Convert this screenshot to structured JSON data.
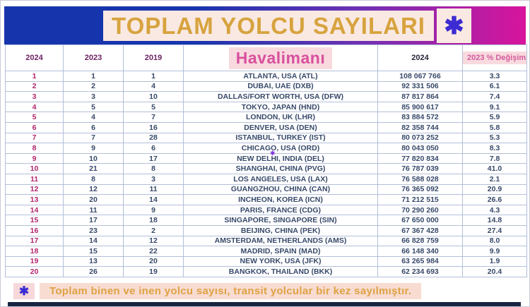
{
  "title": {
    "text": "TOPLAM YOLCU SAYILARI",
    "asterisk_icon": "✱"
  },
  "columns": {
    "rank_2024": "2024",
    "rank_2023": "2023",
    "rank_2019": "2019",
    "airport": "Havalimanı",
    "passengers_2024": "2024",
    "change_2023": "2023 % Değişim"
  },
  "rows": [
    {
      "r2024": "1",
      "r2023": "1",
      "r2019": "1",
      "airport": "ATLANTA, USA (ATL)",
      "pax": "108 067 766",
      "chg": "3.3"
    },
    {
      "r2024": "2",
      "r2023": "2",
      "r2019": "4",
      "airport": "DUBAI, UAE (DXB)",
      "pax": "92 331 506",
      "chg": "6.1"
    },
    {
      "r2024": "3",
      "r2023": "3",
      "r2019": "10",
      "airport": "DALLAS/FORT WORTH, USA (DFW)",
      "pax": "87 817 864",
      "chg": "7.4"
    },
    {
      "r2024": "4",
      "r2023": "5",
      "r2019": "5",
      "airport": "TOKYO, JAPAN (HND)",
      "pax": "85 900 617",
      "chg": "9.1"
    },
    {
      "r2024": "5",
      "r2023": "4",
      "r2019": "7",
      "airport": "LONDON, UK (LHR)",
      "pax": "83 884 572",
      "chg": "5.9"
    },
    {
      "r2024": "6",
      "r2023": "6",
      "r2019": "16",
      "airport": "DENVER, USA (DEN)",
      "pax": "82 358 744",
      "chg": "5.8"
    },
    {
      "r2024": "7",
      "r2023": "7",
      "r2019": "28",
      "airport": "ISTANBUL, TURKEY (IST)",
      "pax": "80 073 252",
      "chg": "5.3"
    },
    {
      "r2024": "8",
      "r2023": "9",
      "r2019": "6",
      "airport": "CHICAGO, USA (ORD)",
      "pax": "80 043 050",
      "chg": "8.3"
    },
    {
      "r2024": "9",
      "r2023": "10",
      "r2019": "17",
      "airport": "NEW DELHI, INDIA (DEL)",
      "pax": "77 820 834",
      "chg": "7.8"
    },
    {
      "r2024": "10",
      "r2023": "21",
      "r2019": "8",
      "airport": "SHANGHAI, CHINA (PVG)",
      "pax": "76 787 039",
      "chg": "41.0"
    },
    {
      "r2024": "11",
      "r2023": "8",
      "r2019": "3",
      "airport": "LOS ANGELES, USA (LAX)",
      "pax": "76 588 028",
      "chg": "2.1"
    },
    {
      "r2024": "12",
      "r2023": "12",
      "r2019": "11",
      "airport": "GUANGZHOU, CHINA (CAN)",
      "pax": "76 365 092",
      "chg": "20.9"
    },
    {
      "r2024": "13",
      "r2023": "20",
      "r2019": "14",
      "airport": "INCHEON, KOREA (ICN)",
      "pax": "71 212 515",
      "chg": "26.6"
    },
    {
      "r2024": "14",
      "r2023": "11",
      "r2019": "9",
      "airport": "PARIS, FRANCE (CDG)",
      "pax": "70 290 260",
      "chg": "4.3"
    },
    {
      "r2024": "15",
      "r2023": "17",
      "r2019": "18",
      "airport": "SINGAPORE, SINGAPORE (SIN)",
      "pax": "67 650 000",
      "chg": "14.8"
    },
    {
      "r2024": "16",
      "r2023": "23",
      "r2019": "2",
      "airport": "BEIJING, CHINA (PEK)",
      "pax": "67 367 428",
      "chg": "27.4"
    },
    {
      "r2024": "17",
      "r2023": "14",
      "r2019": "12",
      "airport": "AMSTERDAM, NETHERLANDS (AMS)",
      "pax": "66 828 759",
      "chg": "8.0"
    },
    {
      "r2024": "18",
      "r2023": "15",
      "r2019": "22",
      "airport": "MADRID, SPAIN (MAD)",
      "pax": "66 148 340",
      "chg": "9.9"
    },
    {
      "r2024": "19",
      "r2023": "13",
      "r2019": "20",
      "airport": "NEW YORK, USA (JFK)",
      "pax": "63 265 984",
      "chg": "1.9"
    },
    {
      "r2024": "20",
      "r2023": "26",
      "r2019": "19",
      "airport": "BANGKOK, THAILAND (BKK)",
      "pax": "62 234 693",
      "chg": "20.4"
    }
  ],
  "annotation_mark": "✱",
  "footnote": {
    "asterisk_icon": "✱",
    "text": "Toplam binen ve inen yolcu sayısı, transit yolcular bir kez sayılmıştır."
  },
  "colors": {
    "banner_blue": "#1635ad",
    "banner_purple": "#6e31b4",
    "banner_magenta": "#d8149c",
    "title_text": "#d7a33e",
    "title_bg": "#f9e9e2",
    "asterisk_blue": "#3c2bd2",
    "rank_magenta": "#b3256d",
    "data_navy": "#37496a",
    "pink_chip": "#f8dade",
    "grid_line": "#b3bfd9",
    "bottom_bar": "#16243f"
  }
}
